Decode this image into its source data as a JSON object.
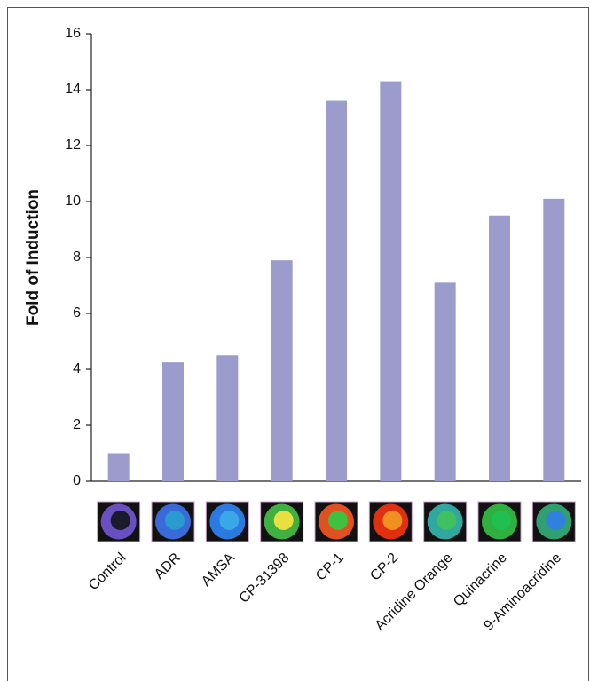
{
  "chart_data": {
    "type": "bar",
    "ylabel": "Fold of Induction",
    "categories": [
      "Control",
      "ADR",
      "AMSA",
      "CP-31398",
      "CP-1",
      "CP-2",
      "Acridine Orange",
      "Quinacrine",
      "9-Aminoacridine"
    ],
    "values": [
      1.0,
      4.25,
      4.5,
      7.9,
      13.6,
      14.3,
      7.1,
      9.5,
      10.1
    ],
    "color": "#9b9bcc",
    "ylim": [
      0,
      16
    ],
    "yticks": [
      0,
      2,
      4,
      6,
      8,
      10,
      12,
      14,
      16
    ]
  }
}
